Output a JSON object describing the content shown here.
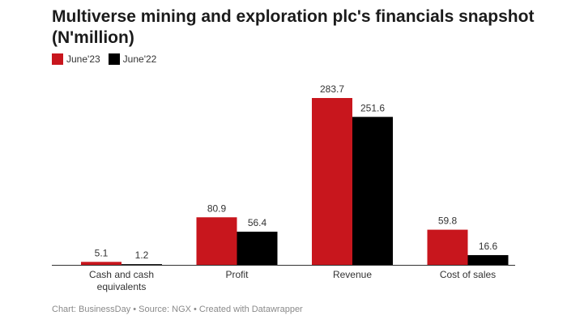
{
  "title": "Multiverse mining and exploration plc's financials snapshot (N'million)",
  "legend": [
    {
      "label": "June'23",
      "color": "#c8161d"
    },
    {
      "label": "June'22",
      "color": "#000000"
    }
  ],
  "source": "Chart: BusinessDay • Source: NGX • Created with Datawrapper",
  "chart_data": {
    "type": "bar",
    "title": "Multiverse mining and exploration plc's financials snapshot (N'million)",
    "categories": [
      [
        "Cash and cash",
        "equivalents"
      ],
      [
        "Profit"
      ],
      [
        "Revenue"
      ],
      [
        "Cost of sales"
      ]
    ],
    "series": [
      {
        "name": "June'23",
        "values": [
          5.1,
          80.9,
          283.7,
          59.8
        ],
        "labels": [
          "5.1",
          "80.9",
          "283.7",
          "59.8"
        ],
        "color": "#c8161d"
      },
      {
        "name": "June'22",
        "values": [
          1.2,
          56.4,
          251.6,
          16.6
        ],
        "labels": [
          "1.2",
          "56.4",
          "251.6",
          "16.6"
        ],
        "color": "#000000"
      }
    ],
    "ylim": [
      0,
      283.7
    ],
    "grid": false,
    "legend_position": "top-left"
  }
}
